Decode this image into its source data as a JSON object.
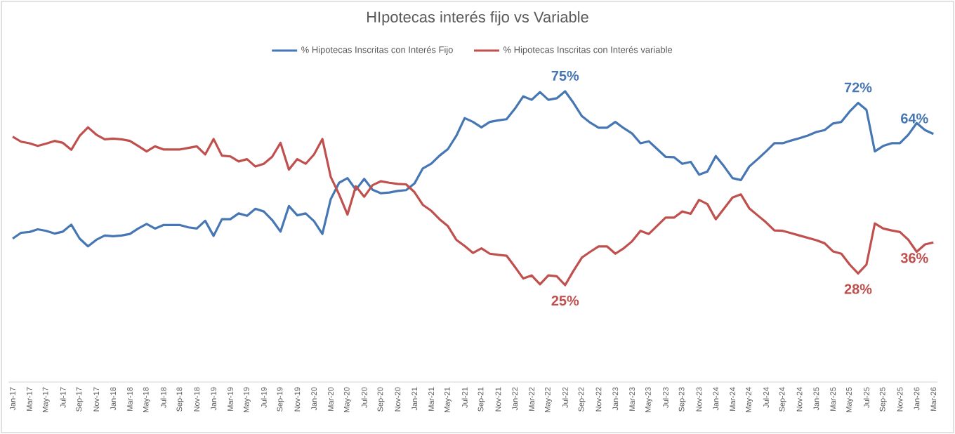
{
  "chart_data": {
    "type": "line",
    "title": "HIpotecas interés fijo vs Variable",
    "categories": [
      "Jan-17",
      null,
      "Mar-17",
      null,
      "May-17",
      null,
      "Jul-17",
      null,
      "Sep-17",
      null,
      "Nov-17",
      null,
      "Jan-18",
      null,
      "Mar-18",
      null,
      "May-18",
      null,
      "Jul-18",
      null,
      "Sep-18",
      null,
      "Nov-18",
      null,
      "Jan-19",
      null,
      "Mar-19",
      null,
      "May-19",
      null,
      "Jul-19",
      null,
      "Sep-19",
      null,
      "Nov-19",
      null,
      "Jan-20",
      null,
      "Mar-20",
      null,
      "May-20",
      null,
      "Jul-20",
      null,
      "Sep-20",
      null,
      "Nov-20",
      null,
      "Jan-21",
      null,
      "Mar-21",
      null,
      "May-21",
      null,
      "Jul-21",
      null,
      "Sep-21",
      null,
      "Nov-21",
      null,
      "Jan-22",
      null,
      "Mar-22",
      null,
      "May-22",
      null,
      "Jul-22",
      null,
      "Sep-22",
      null,
      "Nov-22",
      null,
      "Jan-23",
      null,
      "Mar-23",
      null,
      "May-23",
      null,
      "Jul-23",
      null,
      "Sep-23",
      null,
      "Nov-23",
      null,
      "Jan-24",
      null,
      "Mar-24",
      null,
      "May-24",
      null,
      "Jul-24",
      null,
      "Sep-24",
      null,
      "Nov-24",
      null,
      "Jan-25",
      null,
      "Mar-25",
      null,
      "May-25",
      null,
      "Jul-25",
      null,
      "Sep-25",
      null,
      "Nov-25",
      null,
      "Jan-26",
      null,
      "Mar-26"
    ],
    "series": [
      {
        "name": "% Hipotecas Inscritas con Interés Fijo",
        "color": "#4677b4",
        "values": [
          37.0,
          38.5,
          38.7,
          39.4,
          39.0,
          38.3,
          38.8,
          40.6,
          37.0,
          35.0,
          36.7,
          37.8,
          37.6,
          37.8,
          38.2,
          39.6,
          40.8,
          39.6,
          40.5,
          40.5,
          40.5,
          39.9,
          39.6,
          41.6,
          37.7,
          42.0,
          42.0,
          43.5,
          42.9,
          44.7,
          44.0,
          41.8,
          38.8,
          45.4,
          43.0,
          43.5,
          41.5,
          38.2,
          47.2,
          51.4,
          52.6,
          49.6,
          52.4,
          49.6,
          48.7,
          48.9,
          49.3,
          49.5,
          51.2,
          55.1,
          56.3,
          58.4,
          60.1,
          63.5,
          68.1,
          67.1,
          65.7,
          67.1,
          67.5,
          67.8,
          70.5,
          73.7,
          72.8,
          74.8,
          72.8,
          73.2,
          75,
          72.0,
          68.6,
          66.9,
          65.6,
          65.6,
          67.1,
          65.5,
          64.1,
          61.6,
          62.1,
          60.1,
          58.1,
          58.0,
          56.3,
          56.8,
          53.5,
          54.3,
          58.3,
          55.6,
          52.6,
          52.1,
          55.6,
          57.5,
          59.5,
          61.6,
          61.6,
          62.3,
          62.9,
          63.6,
          64.5,
          65.0,
          66.7,
          67.1,
          69.8,
          72,
          70.2,
          59.5,
          60.9,
          61.6,
          61.6,
          63.8,
          66.8,
          65.0,
          64
        ],
        "value_labels": [
          null,
          null,
          null,
          null,
          null,
          null,
          null,
          null,
          null,
          null,
          null,
          null,
          null,
          null,
          null,
          null,
          null,
          null,
          null,
          null,
          null,
          null,
          null,
          null,
          null,
          null,
          null,
          null,
          null,
          null,
          null,
          null,
          null,
          null,
          null,
          null,
          null,
          null,
          null,
          null,
          null,
          null,
          null,
          null,
          null,
          null,
          null,
          null,
          null,
          null,
          null,
          null,
          null,
          null,
          null,
          null,
          null,
          null,
          null,
          null,
          null,
          null,
          null,
          null,
          null,
          null,
          "75%",
          null,
          null,
          null,
          null,
          null,
          null,
          null,
          null,
          null,
          null,
          null,
          null,
          null,
          null,
          null,
          null,
          null,
          null,
          null,
          null,
          null,
          null,
          null,
          null,
          null,
          null,
          null,
          null,
          null,
          null,
          null,
          null,
          null,
          null,
          "72%",
          null,
          null,
          null,
          null,
          null,
          null,
          null,
          null,
          "64%"
        ]
      },
      {
        "name": "% Hipotecas Inscritas con Interés variable",
        "color": "#c0504d",
        "values": [
          63.3,
          62.0,
          61.6,
          60.9,
          61.5,
          62.2,
          61.7,
          59.9,
          63.5,
          65.7,
          63.8,
          62.6,
          62.8,
          62.6,
          62.2,
          60.9,
          59.5,
          60.8,
          60.0,
          60.0,
          60.0,
          60.4,
          60.8,
          58.7,
          62.7,
          58.4,
          58.2,
          56.9,
          57.5,
          55.6,
          56.3,
          58.1,
          61.7,
          54.8,
          57.5,
          56.3,
          58.7,
          62.7,
          52.9,
          48.4,
          43.2,
          50.5,
          47.8,
          50.8,
          51.8,
          51.4,
          51.1,
          51.0,
          49.0,
          45.7,
          44.2,
          42.0,
          40.2,
          36.7,
          35.1,
          33.3,
          34.5,
          33.1,
          32.8,
          32.6,
          29.7,
          26.7,
          27.5,
          25.2,
          27.5,
          27.3,
          25,
          28.7,
          32.1,
          33.6,
          35.0,
          35.0,
          33.1,
          34.5,
          36.3,
          39.0,
          38.2,
          40.3,
          42.4,
          42.4,
          44.0,
          43.4,
          47.0,
          45.9,
          42.0,
          44.8,
          47.6,
          48.4,
          44.8,
          43.0,
          41.2,
          39.1,
          39.0,
          38.4,
          37.8,
          37.2,
          36.6,
          35.8,
          33.7,
          33.1,
          30.3,
          28,
          30.3,
          40.9,
          39.6,
          39.1,
          38.7,
          36.7,
          33.6,
          35.5,
          36
        ],
        "value_labels": [
          null,
          null,
          null,
          null,
          null,
          null,
          null,
          null,
          null,
          null,
          null,
          null,
          null,
          null,
          null,
          null,
          null,
          null,
          null,
          null,
          null,
          null,
          null,
          null,
          null,
          null,
          null,
          null,
          null,
          null,
          null,
          null,
          null,
          null,
          null,
          null,
          null,
          null,
          null,
          null,
          null,
          null,
          null,
          null,
          null,
          null,
          null,
          null,
          null,
          null,
          null,
          null,
          null,
          null,
          null,
          null,
          null,
          null,
          null,
          null,
          null,
          null,
          null,
          null,
          null,
          null,
          "25%",
          null,
          null,
          null,
          null,
          null,
          null,
          null,
          null,
          null,
          null,
          null,
          null,
          null,
          null,
          null,
          null,
          null,
          null,
          null,
          null,
          null,
          null,
          null,
          null,
          null,
          null,
          null,
          null,
          null,
          null,
          null,
          null,
          null,
          null,
          "28%",
          null,
          null,
          null,
          null,
          null,
          null,
          null,
          null,
          "36%"
        ]
      }
    ],
    "legend": "top",
    "marker": "none",
    "line_style": "solid",
    "grid": false
  }
}
